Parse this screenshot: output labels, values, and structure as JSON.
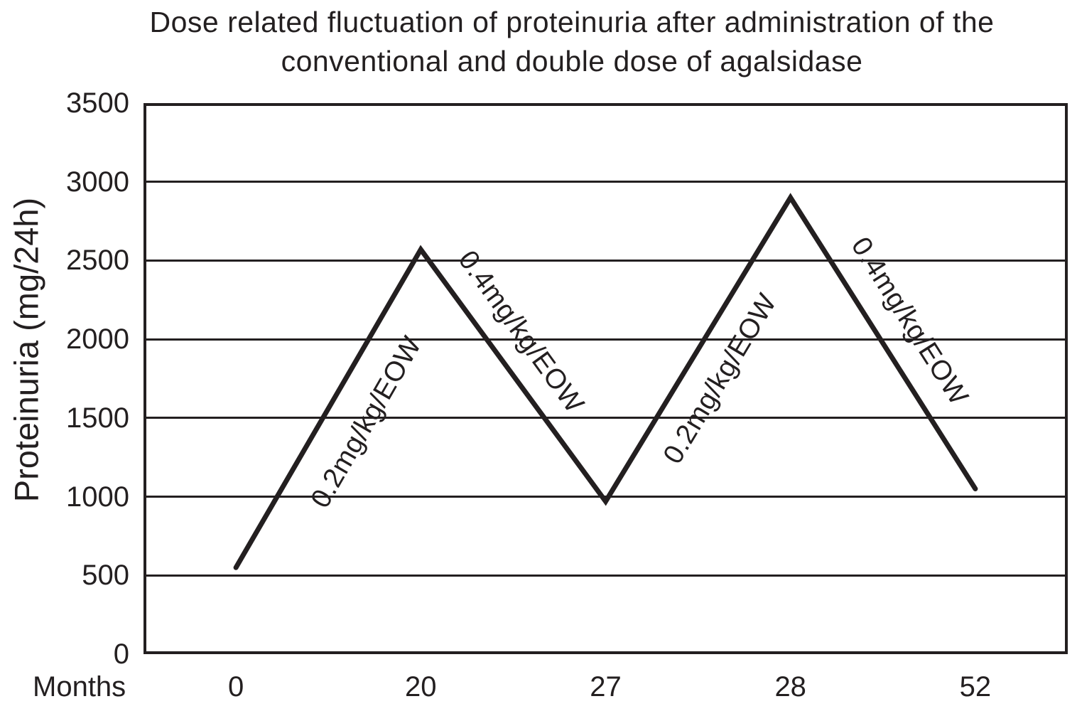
{
  "chart_data": {
    "type": "line",
    "title": "Dose related fluctuation of proteinuria after administration of the conventional and double dose of agalsidase",
    "title_lines": [
      "Dose related fluctuation of proteinuria after administration of the",
      "conventional and double dose of agalsidase"
    ],
    "xlabel": "Months",
    "ylabel": "Proteinuria (mg/24h)",
    "x": [
      0,
      20,
      27,
      28,
      52
    ],
    "x_tick_labels": [
      "0",
      "20",
      "27",
      "28",
      "52"
    ],
    "values": [
      550,
      2570,
      970,
      2900,
      1050
    ],
    "ylim": [
      0,
      3500
    ],
    "y_ticks": [
      3500,
      3000,
      2500,
      2000,
      1500,
      1000,
      500,
      0
    ],
    "grid": "horizontal",
    "legend": "none",
    "x_spacing": "categorical-equal",
    "line_color": "#231f20",
    "background_color": "#ffffff",
    "annotations": [
      {
        "text": "0.2mg/kg/EOW",
        "segment": 0
      },
      {
        "text": "0.4mg/kg/EOW",
        "segment": 1
      },
      {
        "text": "0.2mg/kg/EOW",
        "segment": 2
      },
      {
        "text": "0.4mg/kg/EOW",
        "segment": 3
      }
    ]
  }
}
